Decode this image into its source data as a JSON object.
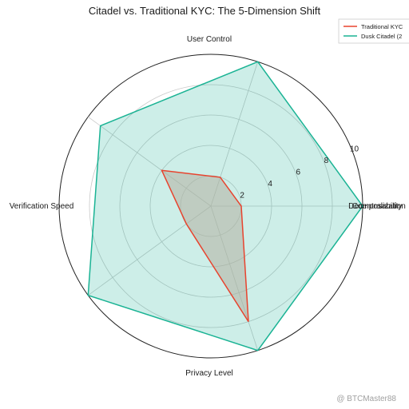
{
  "chart_data": {
    "type": "radar",
    "title": "Citadel vs. Traditional KYC: The 5-Dimension Shift",
    "axes": [
      "Decentralization",
      "User Control",
      "Verification Speed",
      "Privacy Level",
      "Composability"
    ],
    "axis_visible_text": [
      "Composability",
      "User Control",
      "Verification Speed",
      "Privacy Level",
      "Decentralization"
    ],
    "rlim": [
      0,
      10
    ],
    "r_ticks": [
      2,
      4,
      6,
      8,
      10
    ],
    "grid": true,
    "legend_placement": "top-right",
    "series": [
      {
        "name": "Traditional KYC",
        "values": [
          2,
          2,
          4,
          2,
          8
        ],
        "color": "#e8432e"
      },
      {
        "name": "Dusk Citadel",
        "values": [
          10,
          10,
          9,
          10,
          10
        ],
        "color": "#1ab394",
        "fill": "#1ab394",
        "fill_opacity": 0.22
      }
    ]
  },
  "legend_labels": [
    "Traditional KYC",
    "Dusk Citadel (2"
  ],
  "watermark": "@ BTCMaster88"
}
